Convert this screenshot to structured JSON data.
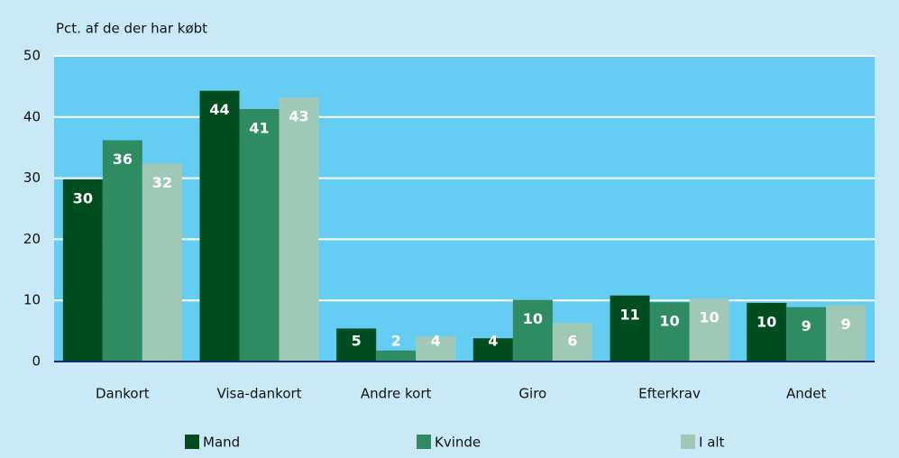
{
  "chart_data": {
    "type": "bar",
    "title": "Pct. af de der har købt",
    "categories": [
      "Dankort",
      "Visa-dankort",
      "Andre kort",
      "Giro",
      "Efterkrav",
      "Andet"
    ],
    "series": [
      {
        "name": "Mand",
        "color": "#004d20",
        "values": [
          29.8,
          44.3,
          5.4,
          3.8,
          10.8,
          9.6
        ],
        "value_labels": [
          "30",
          "44",
          "5",
          "4",
          "11",
          "10"
        ]
      },
      {
        "name": "Kvinde",
        "color": "#2e8b62",
        "values": [
          36.2,
          41.3,
          1.8,
          10.1,
          9.7,
          8.9
        ],
        "value_labels": [
          "36",
          "41",
          "2",
          "10",
          "10",
          "9"
        ]
      },
      {
        "name": "I alt",
        "color": "#a0c8b6",
        "values": [
          32.4,
          43.2,
          4.1,
          6.3,
          10.3,
          9.2
        ],
        "value_labels": [
          "32",
          "43",
          "4",
          "6",
          "10",
          "9"
        ]
      }
    ],
    "ylim": [
      0,
      50
    ],
    "yticks": [
      0,
      10,
      20,
      30,
      40,
      50
    ],
    "grid": true,
    "legend": "bottom"
  }
}
